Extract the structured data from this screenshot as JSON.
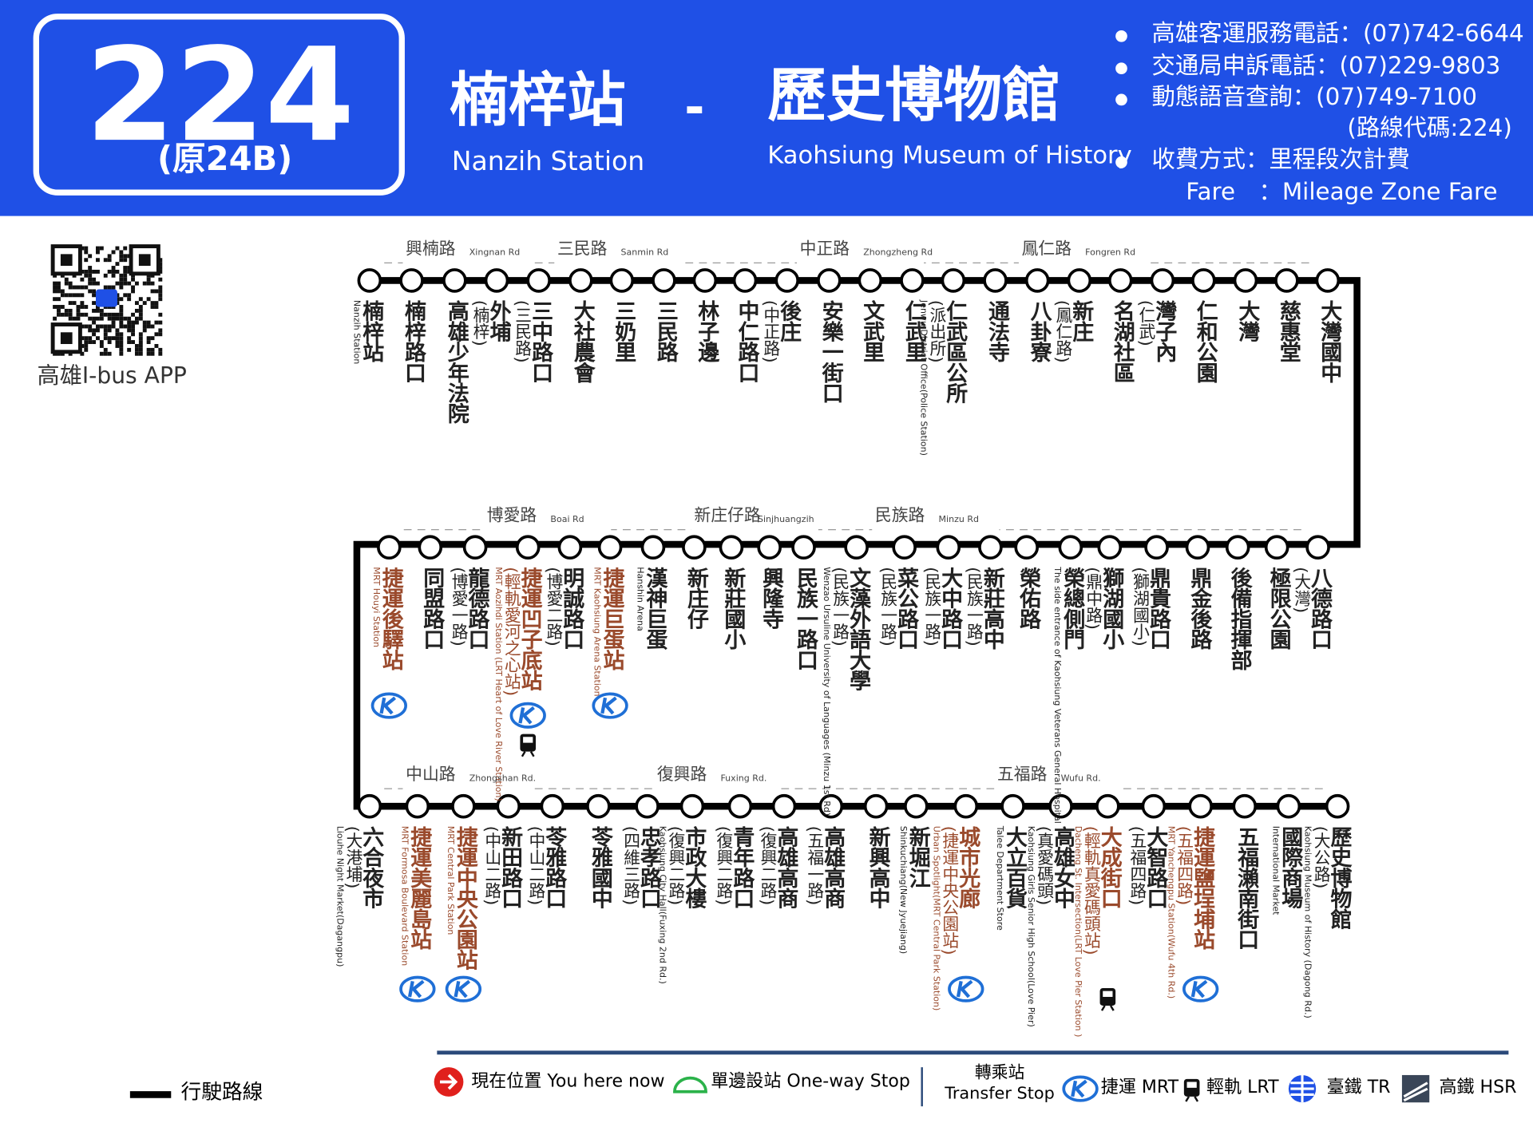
{
  "header": {
    "route": "224",
    "original": "(原24B)",
    "from": {
      "zh": "楠梓站",
      "en": "Nanzih Station"
    },
    "separator": "-",
    "to": {
      "zh": "歷史博物館",
      "en": "Kaohsiung Museum of History"
    },
    "info": [
      {
        "text": "高雄客運服務電話：(07)742-6644",
        "bullet": true
      },
      {
        "text": "交通局申訴電話：(07)229-9803",
        "bullet": true
      },
      {
        "text": "動態語音查詢：(07)749-7100",
        "bullet": true
      },
      {
        "text": "(路線代碼:224)",
        "bullet": false
      },
      {
        "text": "收費方式：里程段次計費",
        "bullet": true
      },
      {
        "text": "Fare　：Mileage Zone Fare",
        "bullet": false
      }
    ]
  },
  "qr": {
    "label": "高雄I-bus APP"
  },
  "rows": [
    {
      "roads": [
        {
          "zh": "興楠路",
          "en": "Xingnan Rd"
        },
        {
          "zh": "三民路",
          "en": "Sanmin Rd"
        },
        {
          "zh": "中正路",
          "en": "Zhongzheng Rd"
        },
        {
          "zh": "鳳仁路",
          "en": "Fongren Rd"
        }
      ],
      "stops": [
        {
          "name": "楠梓站",
          "en": "Nanzih Station"
        },
        {
          "name": "楠梓路口"
        },
        {
          "name": "高雄少年法院"
        },
        {
          "name": "外埔",
          "sub": "(楠梓)"
        },
        {
          "name": "三中路口",
          "sub": "(三民路)"
        },
        {
          "name": "大社農會"
        },
        {
          "name": "三奶里"
        },
        {
          "name": "三民路"
        },
        {
          "name": "林子邊"
        },
        {
          "name": "中仁路口"
        },
        {
          "name": "後庄",
          "sub": "(中正路)"
        },
        {
          "name": "安樂一街口"
        },
        {
          "name": "文武里"
        },
        {
          "name": "仁武里"
        },
        {
          "name": "仁武區公所",
          "sub": "(派出所)",
          "en": "Jenwu District Office(Police Station)"
        },
        {
          "name": "通法寺"
        },
        {
          "name": "八卦寮"
        },
        {
          "name": "新庄",
          "sub": "(鳳仁路)"
        },
        {
          "name": "名湖社區"
        },
        {
          "name": "灣子內",
          "sub": "(仁武)"
        },
        {
          "name": "仁和公園"
        },
        {
          "name": "大灣"
        },
        {
          "name": "慈惠堂"
        },
        {
          "name": "大灣國中"
        }
      ]
    },
    {
      "roads": [
        {
          "zh": "博愛路",
          "en": "Boai Rd"
        },
        {
          "zh": "新庄仔路",
          "en": "Sinjhuangzih"
        },
        {
          "zh": "民族路",
          "en": "Minzu Rd"
        }
      ],
      "stops": [
        {
          "name": "捷運後驛站",
          "en": "MRT Houyi Station",
          "highlight": true,
          "transfer": [
            "mrt"
          ]
        },
        {
          "name": "同盟路口"
        },
        {
          "name": "龍德路口",
          "sub": "(博愛一路)"
        },
        {
          "name": "捷運凹子底站",
          "sub": "(輕軌愛河之心站)",
          "en": "MRT Aozihdi Station (LRT Heart of Love River Station)",
          "highlight": true,
          "transfer": [
            "mrt",
            "lrt"
          ]
        },
        {
          "name": "明誠路口",
          "sub": "(博愛二路)"
        },
        {
          "name": "捷運巨蛋站",
          "en": "MRT Kaohsiung Arena Station",
          "highlight": true,
          "transfer": [
            "mrt"
          ]
        },
        {
          "name": "漢神巨蛋",
          "en": "Hanshin Arena"
        },
        {
          "name": "新庄仔"
        },
        {
          "name": "新莊國小"
        },
        {
          "name": "興隆寺"
        },
        {
          "name": "民族一路口"
        },
        {
          "name": "文藻外語大學",
          "sub": "(民族一路)",
          "en": "Wenzao Ursuline University of Languages (Minzu 1st Rd)"
        },
        {
          "name": "菜公路口",
          "sub": "(民族一路)"
        },
        {
          "name": "大中路口",
          "sub": "(民族一路)"
        },
        {
          "name": "新莊高中",
          "sub": "(民族一路)"
        },
        {
          "name": "榮佑路"
        },
        {
          "name": "榮總側門",
          "en": "The side entrance of Kaohsiung Veterans General Hospital"
        },
        {
          "name": "獅湖國小",
          "sub": "(鼎中路)"
        },
        {
          "name": "鼎貴路口",
          "sub": "(獅湖國小)"
        },
        {
          "name": "鼎金後路"
        },
        {
          "name": "後備指揮部"
        },
        {
          "name": "極限公園"
        },
        {
          "name": "八德路口",
          "sub": "(大灣)"
        }
      ]
    },
    {
      "roads": [
        {
          "zh": "中山路",
          "en": "Zhongshan Rd."
        },
        {
          "zh": "復興路",
          "en": "Fuxing Rd."
        },
        {
          "zh": "五福路",
          "en": "Wufu Rd."
        }
      ],
      "stops": [
        {
          "name": "六合夜市",
          "sub": "(大港埔)",
          "en": "Liouhe Night Market(Dagangpu)"
        },
        {
          "name": "捷運美麗島站",
          "en": "MRT Formosa Boulevard Station",
          "highlight": true,
          "transfer": [
            "mrt"
          ]
        },
        {
          "name": "捷運中央公園站",
          "en": "MRT Central Park Station",
          "highlight": true,
          "transfer": [
            "mrt"
          ]
        },
        {
          "name": "新田路口",
          "sub": "(中山二路)"
        },
        {
          "name": "苓雅路口",
          "sub": "(中山二路)"
        },
        {
          "name": "苓雅國中"
        },
        {
          "name": "忠孝路口",
          "sub": "(四維三路)"
        },
        {
          "name": "市政大樓",
          "sub": "(復興二路)",
          "en": "Kaohsiung City Hall(Fuxing 2nd Rd.)"
        },
        {
          "name": "青年路口",
          "sub": "(復興二路)"
        },
        {
          "name": "高雄高商",
          "sub": "(復興二路)"
        },
        {
          "name": "高雄高商",
          "sub": "(五福一路)"
        },
        {
          "name": "新興高中"
        },
        {
          "name": "新堀江",
          "en": "Shinkuchiang(New Jyuejiang)"
        },
        {
          "name": "城市光廊",
          "sub": "(捷運中央公園站)",
          "en": "Urban Spotlight(MRT Central Park Station)",
          "highlight": true,
          "transfer": [
            "mrt"
          ]
        },
        {
          "name": "大立百貨",
          "en": "Talee Department Store"
        },
        {
          "name": "高雄女中",
          "sub": "(真愛碼頭)",
          "en": "Kaohsiung Girls Senior High School(Love Pier)"
        },
        {
          "name": "大成街口",
          "sub": "(輕軌真愛碼頭站)",
          "en": "Dacheng St. Intersection(LRT Love Pier Station )",
          "highlight": true,
          "transfer": [
            "lrt"
          ]
        },
        {
          "name": "大智路口",
          "sub": "(五福四路)"
        },
        {
          "name": "捷運鹽埕埔站",
          "sub": "(五福四路)",
          "en": "MRT Yanchengpu Station(Wufu 4th Rd.)",
          "highlight": true,
          "transfer": [
            "mrt"
          ]
        },
        {
          "name": "五福瀨南街口"
        },
        {
          "name": "國際商場",
          "en": "International Market"
        },
        {
          "name": "歷史博物館",
          "sub": "(大公路)",
          "en": "Kaohsiung Museum of History (Dagong Rd.)"
        }
      ]
    }
  ],
  "legend": {
    "route_line": "行駛路線",
    "here": "現在位置 You here now",
    "oneway": "單邊設站 One-way Stop",
    "transfer": "轉乘站",
    "transfer_en": "Transfer Stop",
    "mrt": "捷運 MRT",
    "lrt": "輕軌 LRT",
    "tr": "臺鐵 TR",
    "hsr": "高鐵 HSR"
  }
}
